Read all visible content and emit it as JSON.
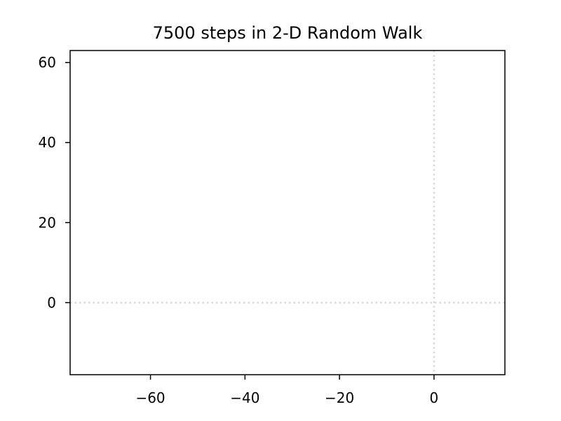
{
  "chart_data": {
    "type": "line",
    "title": "7500 steps in 2-D Random Walk",
    "xlabel": "",
    "ylabel": "",
    "xlim": [
      -77,
      15
    ],
    "ylim": [
      -18,
      63
    ],
    "xticks": [
      -60,
      -40,
      -20,
      0
    ],
    "xtick_labels": [
      "−60",
      "−40",
      "−20",
      "0"
    ],
    "yticks": [
      0,
      20,
      40,
      60
    ],
    "ytick_labels": [
      "0",
      "20",
      "40",
      "60"
    ],
    "reference_lines": [
      {
        "orientation": "horizontal",
        "value": 0,
        "style": "dotted",
        "color": "#d9d9d9"
      },
      {
        "orientation": "vertical",
        "value": 0,
        "style": "dotted",
        "color": "#d9d9d9"
      }
    ],
    "series": [],
    "grid": false,
    "legend": "none"
  }
}
